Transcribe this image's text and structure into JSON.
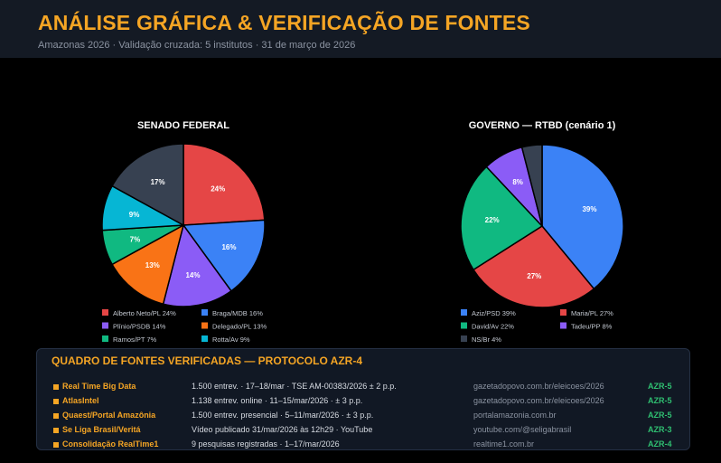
{
  "header": {
    "title": "ANÁLISE GRÁFICA & VERIFICAÇÃO DE FONTES",
    "subtitle": "Amazonas 2026 · Validação cruzada: 5 institutos · 31 de março de 2026"
  },
  "chart_data": [
    {
      "type": "pie",
      "title": "SENADO FEDERAL",
      "slices": [
        {
          "label": "Alberto Neto/PL 24%",
          "value": 24,
          "color": "#e54646"
        },
        {
          "label": "Braga/MDB 16%",
          "value": 16,
          "color": "#3b82f6"
        },
        {
          "label": "Plínio/PSDB 14%",
          "value": 14,
          "color": "#8b5cf6"
        },
        {
          "label": "Delegado/PL 13%",
          "value": 13,
          "color": "#f97316"
        },
        {
          "label": "Ramos/PT 7%",
          "value": 7,
          "color": "#10b981"
        },
        {
          "label": "Rotta/Av 9%",
          "value": 9,
          "color": "#06b6d4"
        },
        {
          "label": "",
          "value": 17,
          "color": "#374151"
        }
      ],
      "data_labels": [
        "24%",
        "16%",
        "14%",
        "13%",
        "7%",
        "9%",
        "17%"
      ]
    },
    {
      "type": "pie",
      "title": "GOVERNO — RTBD (cenário 1)",
      "slices": [
        {
          "label": "Aziz/PSD 39%",
          "value": 39,
          "color": "#3b82f6"
        },
        {
          "label": "Maria/PL 27%",
          "value": 27,
          "color": "#e54646"
        },
        {
          "label": "David/Av 22%",
          "value": 22,
          "color": "#10b981"
        },
        {
          "label": "Tadeu/PP 8%",
          "value": 8,
          "color": "#8b5cf6"
        },
        {
          "label": "NS/Br 4%",
          "value": 4,
          "color": "#374151"
        }
      ],
      "data_labels": [
        "39%",
        "27%",
        "22%",
        "8%",
        ""
      ]
    }
  ],
  "sources": {
    "title": "QUADRO DE FONTES VERIFICADAS — PROTOCOLO AZR-4",
    "rows": [
      {
        "name": "Real Time Big Data",
        "desc": "1.500 entrev. · 17–18/mar · TSE AM-00383/2026 ± 2 p.p.",
        "url": "gazetadopovo.com.br/eleicoes/2026",
        "code": "AZR-5"
      },
      {
        "name": "AtlasIntel",
        "desc": "1.138 entrev. online · 11–15/mar/2026 · ± 3 p.p.",
        "url": "gazetadopovo.com.br/eleicoes/2026",
        "code": "AZR-5"
      },
      {
        "name": "Quaest/Portal Amazônia",
        "desc": "1.500 entrev. presencial · 5–11/mar/2026 · ± 3 p.p.",
        "url": "portalamazonia.com.br",
        "code": "AZR-5"
      },
      {
        "name": "Se Liga Brasil/Veritá",
        "desc": "Vídeo publicado 31/mar/2026 às 12h29 · YouTube",
        "url": "youtube.com/@seligabrasil",
        "code": "AZR-3"
      },
      {
        "name": "Consolidação RealTime1",
        "desc": "9 pesquisas registradas · 1–17/mar/2026",
        "url": "realtime1.com.br",
        "code": "AZR-4"
      }
    ]
  }
}
